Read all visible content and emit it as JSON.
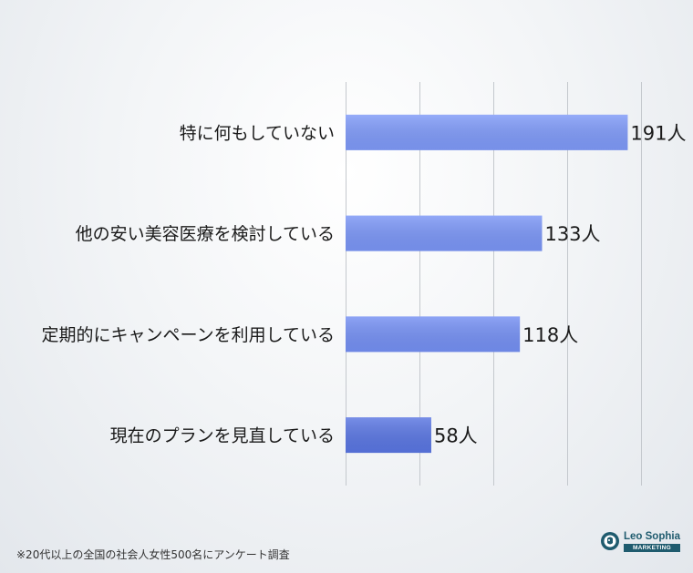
{
  "chart_data": {
    "type": "bar",
    "orientation": "horizontal",
    "categories": [
      "特に何もしていない",
      "他の安い美容医療を検討している",
      "定期的にキャンペーンを利用している",
      "現在のプランを見直している"
    ],
    "values": [
      191,
      133,
      118,
      58
    ],
    "value_labels": [
      "191人",
      "133人",
      "118人",
      "58人"
    ],
    "xlim": [
      0,
      200
    ],
    "grid": true,
    "colors": [
      "#7f9af8",
      "#7b96f6",
      "#7590f3",
      "#5a76e2"
    ]
  },
  "footnote": "※20代以上の全国の社会人女性500名にアンケート調査",
  "logo": {
    "name": "Leo Sophia",
    "subtitle": "MARKETING"
  }
}
